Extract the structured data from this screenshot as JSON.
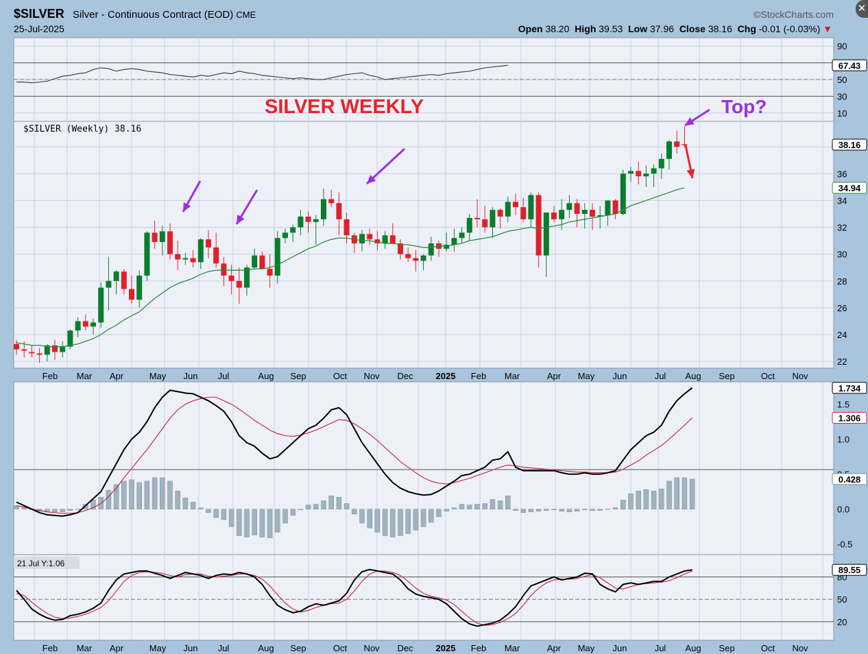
{
  "header": {
    "symbol": "$SILVER",
    "description": "Silver - Continuous Contract (EOD)",
    "exchange": "CME",
    "date": "25-Jul-2025",
    "brand": "©StockCharts.com",
    "open_label": "Open",
    "open": "38.20",
    "high_label": "High",
    "high": "39.53",
    "low_label": "Low",
    "low": "37.96",
    "close_label": "Close",
    "close": "38.16",
    "chg_label": "Chg",
    "chg": "-0.01 (-0.03%)"
  },
  "annotations": {
    "title": "SILVER WEEKLY",
    "top_question": "Top?",
    "price_legend": "$SILVER (Weekly) 38.16",
    "stoch_legend": "21 Jul Y:1.06"
  },
  "colors": {
    "up": "#0a7d2c",
    "down": "#e0202a",
    "ma": "#2e8b3a",
    "annotation_red": "#e8232b",
    "annotation_purple": "#9b30e0",
    "macd": "#000000",
    "signal": "#c03048",
    "hist": "#9fb3c0"
  },
  "chart_data": [
    {
      "type": "line",
      "name": "rsi-panel",
      "ylim": [
        0,
        100
      ],
      "y_ticks": [
        90,
        70,
        50,
        30,
        10
      ],
      "last_value_label": "67.43",
      "values": [
        47,
        47,
        46,
        47,
        48,
        51,
        54,
        55,
        57,
        58,
        62,
        64,
        63,
        60,
        62,
        63,
        62,
        60,
        59,
        58,
        56,
        55,
        54,
        53,
        55,
        54,
        56,
        58,
        57,
        60,
        58,
        57,
        55,
        54,
        53,
        52,
        51,
        52,
        51,
        50,
        50,
        52,
        54,
        56,
        57,
        58,
        55,
        53,
        50,
        51,
        52,
        53,
        54,
        55,
        56,
        55,
        57,
        58,
        59,
        60,
        62,
        64,
        65,
        66,
        67
      ]
    },
    {
      "type": "candlestick",
      "name": "price-panel",
      "ylim": [
        21.5,
        39.9
      ],
      "y_ticks": [
        22,
        24,
        26,
        28,
        30,
        32,
        34,
        36,
        38
      ],
      "last_value_label": "38.16",
      "ma_last_label": "34.94",
      "x_labels": [
        "Feb",
        "Mar",
        "Apr",
        "May",
        "Jun",
        "Jul",
        "Aug",
        "Sep",
        "Oct",
        "Nov",
        "Dec",
        "2025",
        "Feb",
        "Mar",
        "Apr",
        "May",
        "Jun",
        "Jul",
        "Aug",
        "Sep",
        "Oct",
        "Nov"
      ],
      "ohlc": [
        [
          23.3,
          23.6,
          22.5,
          22.9
        ],
        [
          22.9,
          23.5,
          22.3,
          22.8
        ],
        [
          22.7,
          23.2,
          22.3,
          22.6
        ],
        [
          22.6,
          23.0,
          21.9,
          22.5
        ],
        [
          22.5,
          23.3,
          22.0,
          23.2
        ],
        [
          23.2,
          23.6,
          22.1,
          22.7
        ],
        [
          22.7,
          23.5,
          22.3,
          23.1
        ],
        [
          23.1,
          24.4,
          22.9,
          24.3
        ],
        [
          24.3,
          25.3,
          23.8,
          25.0
        ],
        [
          25.0,
          25.5,
          24.3,
          24.6
        ],
        [
          24.6,
          25.2,
          24.0,
          24.9
        ],
        [
          24.9,
          27.9,
          24.5,
          27.5
        ],
        [
          27.5,
          29.8,
          25.8,
          28.0
        ],
        [
          28.0,
          28.8,
          27.0,
          28.7
        ],
        [
          28.7,
          28.9,
          27.0,
          27.4
        ],
        [
          27.4,
          28.4,
          26.3,
          26.6
        ],
        [
          26.6,
          28.8,
          26.0,
          28.4
        ],
        [
          28.4,
          31.7,
          28.0,
          31.6
        ],
        [
          31.6,
          32.5,
          30.4,
          30.9
        ],
        [
          30.9,
          32.1,
          29.9,
          31.7
        ],
        [
          31.7,
          32.3,
          29.6,
          30.0
        ],
        [
          30.0,
          31.0,
          28.8,
          29.6
        ],
        [
          29.6,
          30.1,
          29.2,
          29.7
        ],
        [
          29.7,
          30.3,
          29.0,
          29.4
        ],
        [
          29.4,
          31.2,
          28.9,
          31.1
        ],
        [
          31.1,
          31.8,
          29.7,
          30.5
        ],
        [
          30.5,
          31.6,
          29.0,
          29.3
        ],
        [
          29.3,
          29.8,
          27.6,
          28.4
        ],
        [
          28.4,
          29.2,
          27.0,
          28.0
        ],
        [
          28.0,
          29.0,
          26.3,
          27.5
        ],
        [
          27.5,
          29.2,
          26.9,
          29.0
        ],
        [
          29.0,
          30.4,
          28.9,
          29.9
        ],
        [
          29.9,
          30.2,
          29.0,
          28.9
        ],
        [
          28.9,
          30.0,
          27.5,
          28.4
        ],
        [
          28.4,
          31.7,
          27.8,
          31.2
        ],
        [
          31.2,
          31.9,
          30.8,
          31.6
        ],
        [
          31.6,
          32.2,
          30.9,
          32.0
        ],
        [
          32.0,
          33.3,
          31.4,
          32.8
        ],
        [
          32.8,
          33.2,
          31.6,
          32.4
        ],
        [
          32.4,
          32.9,
          30.7,
          32.6
        ],
        [
          32.6,
          34.9,
          32.1,
          34.1
        ],
        [
          34.1,
          34.8,
          33.5,
          33.8
        ],
        [
          33.8,
          34.6,
          31.4,
          32.6
        ],
        [
          32.6,
          33.1,
          30.8,
          31.4
        ],
        [
          31.4,
          31.6,
          30.1,
          30.8
        ],
        [
          30.8,
          31.8,
          30.2,
          31.5
        ],
        [
          31.5,
          31.9,
          30.7,
          31.1
        ],
        [
          31.1,
          31.7,
          30.3,
          30.8
        ],
        [
          30.8,
          31.7,
          30.4,
          31.4
        ],
        [
          31.4,
          32.3,
          30.8,
          30.8
        ],
        [
          30.8,
          31.1,
          29.6,
          30.0
        ],
        [
          30.0,
          30.5,
          29.4,
          29.7
        ],
        [
          29.7,
          30.3,
          28.7,
          29.5
        ],
        [
          29.5,
          30.0,
          28.8,
          29.9
        ],
        [
          29.9,
          31.3,
          29.5,
          30.8
        ],
        [
          30.8,
          31.0,
          29.8,
          30.4
        ],
        [
          30.4,
          31.6,
          30.2,
          30.7
        ],
        [
          30.7,
          31.9,
          30.2,
          31.2
        ],
        [
          31.2,
          32.0,
          30.8,
          31.6
        ],
        [
          31.6,
          33.0,
          31.0,
          32.7
        ],
        [
          32.7,
          34.1,
          32.0,
          32.6
        ],
        [
          32.6,
          33.6,
          31.6,
          32.0
        ],
        [
          32.0,
          33.5,
          31.2,
          33.3
        ],
        [
          33.3,
          33.4,
          31.9,
          32.8
        ],
        [
          32.8,
          34.3,
          32.4,
          33.9
        ],
        [
          33.9,
          34.5,
          32.9,
          33.5
        ],
        [
          33.5,
          34.2,
          32.4,
          32.6
        ],
        [
          32.6,
          34.6,
          32.0,
          34.4
        ],
        [
          34.4,
          34.6,
          29.0,
          29.9
        ],
        [
          29.9,
          33.1,
          28.3,
          33.1
        ],
        [
          33.1,
          33.6,
          32.4,
          32.6
        ],
        [
          32.6,
          34.1,
          31.8,
          33.3
        ],
        [
          33.3,
          34.4,
          32.7,
          33.8
        ],
        [
          33.8,
          34.1,
          32.0,
          33.0
        ],
        [
          33.0,
          33.8,
          31.9,
          33.3
        ],
        [
          33.3,
          33.8,
          31.8,
          32.8
        ],
        [
          32.8,
          33.6,
          31.9,
          32.9
        ],
        [
          32.9,
          34.0,
          32.1,
          34.0
        ],
        [
          34.0,
          34.1,
          32.6,
          33.0
        ],
        [
          33.0,
          36.3,
          32.9,
          36.0
        ],
        [
          36.0,
          36.5,
          35.4,
          36.2
        ],
        [
          36.2,
          36.9,
          35.2,
          35.8
        ],
        [
          35.8,
          36.6,
          35.0,
          36.0
        ],
        [
          36.0,
          36.7,
          35.0,
          36.4
        ],
        [
          36.4,
          37.5,
          35.6,
          37.1
        ],
        [
          37.1,
          38.5,
          36.3,
          38.4
        ],
        [
          38.4,
          39.2,
          37.5,
          38.0
        ],
        [
          38.2,
          39.53,
          37.96,
          38.16
        ]
      ],
      "ma": [
        23.4,
        23.3,
        23.2,
        23.2,
        23.1,
        23.1,
        23.1,
        23.2,
        23.3,
        23.5,
        23.7,
        24.0,
        24.4,
        24.7,
        25.1,
        25.4,
        25.7,
        26.2,
        26.7,
        27.1,
        27.5,
        27.8,
        28.0,
        28.2,
        28.5,
        28.7,
        28.8,
        28.8,
        28.8,
        28.8,
        28.8,
        28.9,
        28.9,
        29.0,
        29.2,
        29.5,
        29.8,
        30.1,
        30.4,
        30.6,
        30.9,
        31.1,
        31.2,
        31.2,
        31.1,
        31.0,
        31.0,
        30.9,
        30.8,
        30.8,
        30.7,
        30.7,
        30.6,
        30.5,
        30.5,
        30.6,
        30.6,
        30.7,
        30.8,
        31.0,
        31.1,
        31.2,
        31.3,
        31.5,
        31.7,
        31.8,
        31.9,
        32.0,
        31.9,
        32.0,
        32.1,
        32.2,
        32.4,
        32.5,
        32.6,
        32.7,
        32.8,
        32.9,
        33.0,
        33.3,
        33.6,
        33.8,
        34.0,
        34.2,
        34.4,
        34.6,
        34.8,
        34.94
      ]
    },
    {
      "type": "line",
      "name": "macd-panel",
      "ylim": [
        -0.65,
        1.82
      ],
      "y_ticks": [
        1.5,
        1.0,
        0.5,
        0.0,
        -0.5
      ],
      "macd_label": "1.734",
      "signal_label": "1.306",
      "hist_label": "0.428",
      "macd": [
        0.1,
        0.05,
        0.0,
        -0.05,
        -0.08,
        -0.09,
        -0.1,
        -0.08,
        -0.05,
        0.05,
        0.15,
        0.25,
        0.45,
        0.65,
        0.85,
        1.0,
        1.1,
        1.25,
        1.45,
        1.6,
        1.7,
        1.68,
        1.66,
        1.65,
        1.6,
        1.55,
        1.48,
        1.4,
        1.25,
        1.05,
        0.95,
        0.9,
        0.8,
        0.72,
        0.75,
        0.85,
        0.95,
        1.05,
        1.15,
        1.2,
        1.3,
        1.42,
        1.45,
        1.35,
        1.15,
        0.95,
        0.8,
        0.65,
        0.5,
        0.38,
        0.3,
        0.25,
        0.22,
        0.2,
        0.21,
        0.26,
        0.33,
        0.4,
        0.48,
        0.5,
        0.55,
        0.6,
        0.7,
        0.72,
        0.82,
        0.6,
        0.55,
        0.55,
        0.55,
        0.55,
        0.55,
        0.52,
        0.5,
        0.5,
        0.52,
        0.5,
        0.5,
        0.52,
        0.55,
        0.7,
        0.85,
        0.95,
        1.05,
        1.1,
        1.2,
        1.4,
        1.55,
        1.65,
        1.734
      ],
      "signal": [
        0.05,
        0.03,
        0.0,
        -0.02,
        -0.04,
        -0.05,
        -0.06,
        -0.06,
        -0.05,
        -0.02,
        0.02,
        0.08,
        0.18,
        0.3,
        0.45,
        0.58,
        0.72,
        0.85,
        1.0,
        1.15,
        1.3,
        1.42,
        1.5,
        1.55,
        1.58,
        1.6,
        1.6,
        1.55,
        1.5,
        1.43,
        1.35,
        1.27,
        1.2,
        1.13,
        1.08,
        1.05,
        1.04,
        1.06,
        1.09,
        1.13,
        1.18,
        1.23,
        1.28,
        1.27,
        1.22,
        1.15,
        1.07,
        0.98,
        0.88,
        0.78,
        0.68,
        0.6,
        0.52,
        0.45,
        0.4,
        0.37,
        0.36,
        0.38,
        0.41,
        0.44,
        0.48,
        0.52,
        0.56,
        0.6,
        0.63,
        0.62,
        0.6,
        0.59,
        0.58,
        0.57,
        0.56,
        0.55,
        0.54,
        0.53,
        0.53,
        0.52,
        0.52,
        0.52,
        0.53,
        0.57,
        0.63,
        0.69,
        0.77,
        0.84,
        0.91,
        1.0,
        1.1,
        1.2,
        1.306
      ]
    },
    {
      "type": "line",
      "name": "stoch-panel",
      "ylim": [
        0,
        100
      ],
      "y_ticks": [
        80,
        50,
        20
      ],
      "last_value_label": "89.55",
      "k": [
        62,
        50,
        37,
        30,
        25,
        22,
        23,
        28,
        30,
        33,
        38,
        45,
        62,
        76,
        84,
        86,
        88,
        88,
        85,
        82,
        78,
        82,
        86,
        84,
        82,
        78,
        82,
        84,
        83,
        86,
        84,
        80,
        70,
        55,
        42,
        36,
        32,
        34,
        40,
        44,
        42,
        45,
        48,
        58,
        76,
        87,
        90,
        88,
        86,
        84,
        76,
        64,
        57,
        54,
        52,
        50,
        44,
        34,
        24,
        17,
        14,
        16,
        18,
        22,
        30,
        40,
        55,
        68,
        72,
        76,
        80,
        76,
        78,
        80,
        85,
        84,
        70,
        64,
        60,
        70,
        72,
        70,
        72,
        74,
        74,
        80,
        84,
        88,
        89.55
      ],
      "d": [
        58,
        55,
        46,
        38,
        31,
        26,
        24,
        25,
        27,
        30,
        34,
        39,
        48,
        61,
        74,
        82,
        86,
        87,
        86,
        85,
        82,
        80,
        83,
        84,
        84,
        81,
        80,
        81,
        82,
        84,
        84,
        82,
        77,
        68,
        56,
        45,
        37,
        33,
        35,
        39,
        42,
        44,
        45,
        50,
        61,
        74,
        84,
        88,
        88,
        86,
        82,
        74,
        65,
        58,
        54,
        52,
        49,
        43,
        34,
        25,
        18,
        15,
        16,
        19,
        24,
        31,
        42,
        55,
        65,
        72,
        76,
        77,
        77,
        78,
        81,
        83,
        79,
        72,
        65,
        64,
        67,
        70,
        71,
        72,
        73,
        75,
        79,
        84,
        88
      ]
    }
  ]
}
